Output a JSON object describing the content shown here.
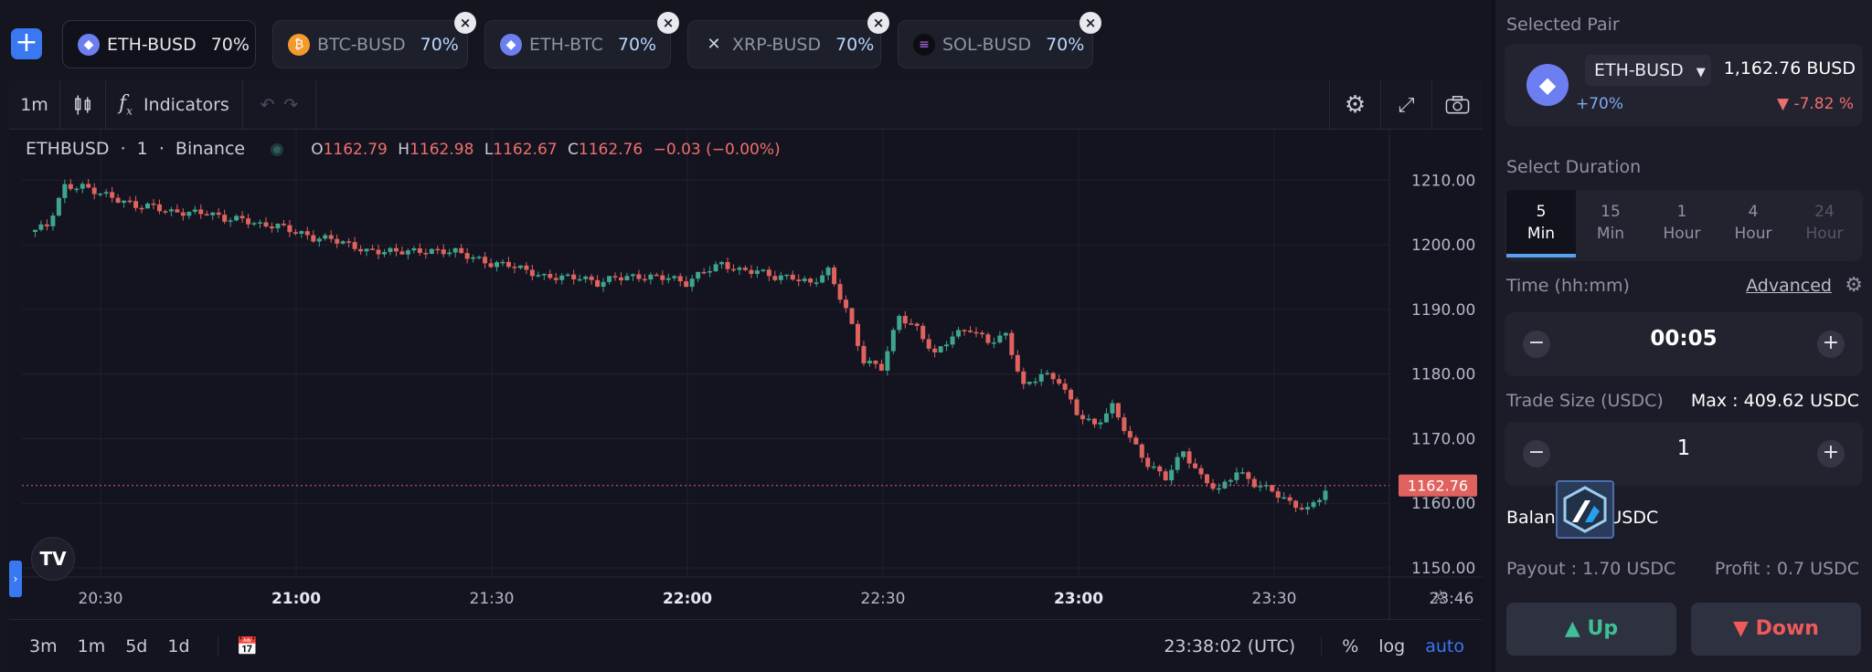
{
  "tabs": [
    {
      "pair": "ETH-BUSD",
      "pct": "70%",
      "coin": "ETH",
      "color": "#6d7ff0",
      "active": true
    },
    {
      "pair": "BTC-BUSD",
      "pct": "70%",
      "coin": "BTC",
      "color": "#f39a2c"
    },
    {
      "pair": "ETH-BTC",
      "pct": "70%",
      "coin": "ETH",
      "color": "#6d7ff0"
    },
    {
      "pair": "XRP-BUSD",
      "pct": "70%",
      "coin": "XRP",
      "color": "#2a2b33"
    },
    {
      "pair": "SOL-BUSD",
      "pct": "70%",
      "coin": "SOL",
      "color": "#1b1b1b"
    }
  ],
  "toolbar": {
    "interval": "1m",
    "indicators": "Indicators"
  },
  "legend": {
    "symbol": "ETHBUSD",
    "interval": "1",
    "exchange": "Binance",
    "o_label": "O",
    "o": "1162.79",
    "h_label": "H",
    "h": "1162.98",
    "l_label": "L",
    "l": "1162.67",
    "c_label": "C",
    "c": "1162.76",
    "change": "−0.03 (−0.00%)"
  },
  "price_tag": "1162.76",
  "bottom": {
    "ranges": [
      "3m",
      "1m",
      "5d",
      "1d"
    ],
    "clock": "23:38:02 (UTC)",
    "pct": "%",
    "log": "log",
    "auto": "auto"
  },
  "chart_data": {
    "type": "candlestick",
    "x_ticks": [
      "20:30",
      "21:00",
      "21:30",
      "22:00",
      "22:30",
      "23:00",
      "23:30",
      "23:46"
    ],
    "y_ticks": [
      1210,
      1200,
      1190,
      1180,
      1170,
      1160,
      1150
    ],
    "ylim": [
      1150,
      1215
    ],
    "last_price": 1162.76,
    "close_path": [
      1202,
      1203,
      1209,
      1209,
      1208,
      1207,
      1206,
      1206,
      1205,
      1205,
      1205,
      1204,
      1204,
      1203,
      1203,
      1202,
      1201,
      1201,
      1200,
      1199,
      1199,
      1199,
      1199,
      1199,
      1199,
      1198,
      1197,
      1197,
      1196,
      1195,
      1195,
      1195,
      1194,
      1195,
      1195,
      1195,
      1195,
      1194,
      1196,
      1197,
      1196,
      1196,
      1195,
      1195,
      1194,
      1196,
      1190,
      1182,
      1181,
      1189,
      1187,
      1183,
      1186,
      1187,
      1185,
      1186,
      1178,
      1180,
      1179,
      1174,
      1172,
      1175,
      1170,
      1166,
      1164,
      1168,
      1164,
      1162,
      1165,
      1163,
      1162,
      1160,
      1159,
      1162
    ]
  },
  "panel": {
    "selected_pair_label": "Selected Pair",
    "pair": "ETH-BUSD",
    "price": "1,162.76 BUSD",
    "payout_pct": "+70%",
    "change": "▼ -7.82 %",
    "duration_label": "Select Duration",
    "durations": [
      {
        "n": "5",
        "u": "Min"
      },
      {
        "n": "15",
        "u": "Min"
      },
      {
        "n": "1",
        "u": "Hour"
      },
      {
        "n": "4",
        "u": "Hour"
      },
      {
        "n": "24",
        "u": "Hour"
      }
    ],
    "time_label": "Time (hh:mm)",
    "advanced": "Advanced",
    "time_value": "00:05",
    "trade_size_label": "Trade Size (USDC)",
    "max": "Max : 409.62 USDC",
    "trade_value": "1",
    "balance": "Balance : 0 USDC",
    "payout": "Payout : 1.70 USDC",
    "profit": "Profit : 0.7 USDC",
    "up": "▲ Up",
    "down": "▼ Down"
  }
}
